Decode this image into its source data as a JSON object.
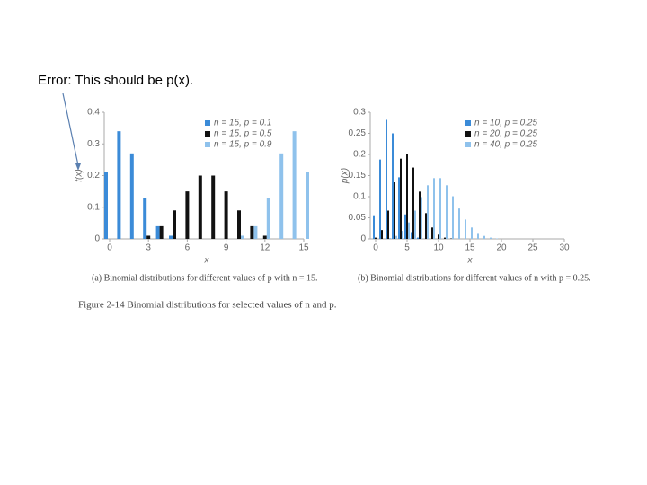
{
  "annotation": "Error: This should be p(x).",
  "figure_caption": "Figure 2-14 Binomial distributions for selected values of n and p.",
  "chart_data": [
    {
      "type": "bar",
      "caption": "(a) Binomial distributions for different values of p with n = 15.",
      "xlabel": "x",
      "ylabel": "f(x)",
      "x": [
        0,
        1,
        2,
        3,
        4,
        5,
        6,
        7,
        8,
        9,
        10,
        11,
        12,
        13,
        14,
        15
      ],
      "series": [
        {
          "name": "n = 15, p = 0.1",
          "color": "#3b8bd8",
          "values": [
            0.21,
            0.34,
            0.27,
            0.13,
            0.04,
            0.01,
            0,
            0,
            0,
            0,
            0,
            0,
            0,
            0,
            0,
            0
          ]
        },
        {
          "name": "n = 15, p = 0.5",
          "color": "#111111",
          "values": [
            0,
            0,
            0,
            0.01,
            0.04,
            0.09,
            0.15,
            0.2,
            0.2,
            0.15,
            0.09,
            0.04,
            0.01,
            0,
            0,
            0
          ]
        },
        {
          "name": "n = 15, p = 0.9",
          "color": "#8fc2ec",
          "values": [
            0,
            0,
            0,
            0,
            0,
            0,
            0,
            0,
            0,
            0,
            0.01,
            0.04,
            0.13,
            0.27,
            0.34,
            0.21
          ]
        }
      ],
      "xlim": [
        0,
        15
      ],
      "xticks": [
        0,
        3,
        6,
        9,
        12,
        15
      ],
      "ylim": [
        0,
        0.4
      ],
      "yticks": [
        0,
        0.1,
        0.2,
        0.3,
        0.4
      ],
      "legend": "upper right"
    },
    {
      "type": "bar",
      "caption": "(b) Binomial distributions for different values of n with p = 0.25.",
      "xlabel": "x",
      "ylabel": "p(x)",
      "x": [
        0,
        1,
        2,
        3,
        4,
        5,
        6,
        7,
        8,
        9,
        10,
        11,
        12,
        13,
        14,
        15,
        16,
        17,
        18,
        19,
        20
      ],
      "series": [
        {
          "name": "n = 10, p = 0.25",
          "color": "#3b8bd8",
          "values": [
            0.056,
            0.188,
            0.282,
            0.25,
            0.146,
            0.058,
            0.016,
            0.003,
            0,
            0,
            0,
            0,
            0,
            0,
            0,
            0,
            0,
            0,
            0,
            0,
            0
          ]
        },
        {
          "name": "n = 20, p = 0.25",
          "color": "#111111",
          "values": [
            0.003,
            0.021,
            0.067,
            0.134,
            0.19,
            0.202,
            0.169,
            0.112,
            0.061,
            0.027,
            0.01,
            0.003,
            0.001,
            0,
            0,
            0,
            0,
            0,
            0,
            0,
            0
          ]
        },
        {
          "name": "n = 40, p = 0.25",
          "color": "#8fc2ec",
          "values": [
            0,
            0,
            0.002,
            0.007,
            0.019,
            0.039,
            0.067,
            0.099,
            0.127,
            0.144,
            0.144,
            0.127,
            0.101,
            0.072,
            0.046,
            0.027,
            0.014,
            0.007,
            0.003,
            0.001,
            0
          ]
        }
      ],
      "xlim": [
        0,
        30
      ],
      "xticks": [
        0,
        5,
        10,
        15,
        20,
        25,
        30
      ],
      "ylim": [
        0,
        0.3
      ],
      "yticks": [
        0,
        0.05,
        0.1,
        0.15,
        0.2,
        0.25,
        0.3
      ],
      "legend": "upper right"
    }
  ]
}
